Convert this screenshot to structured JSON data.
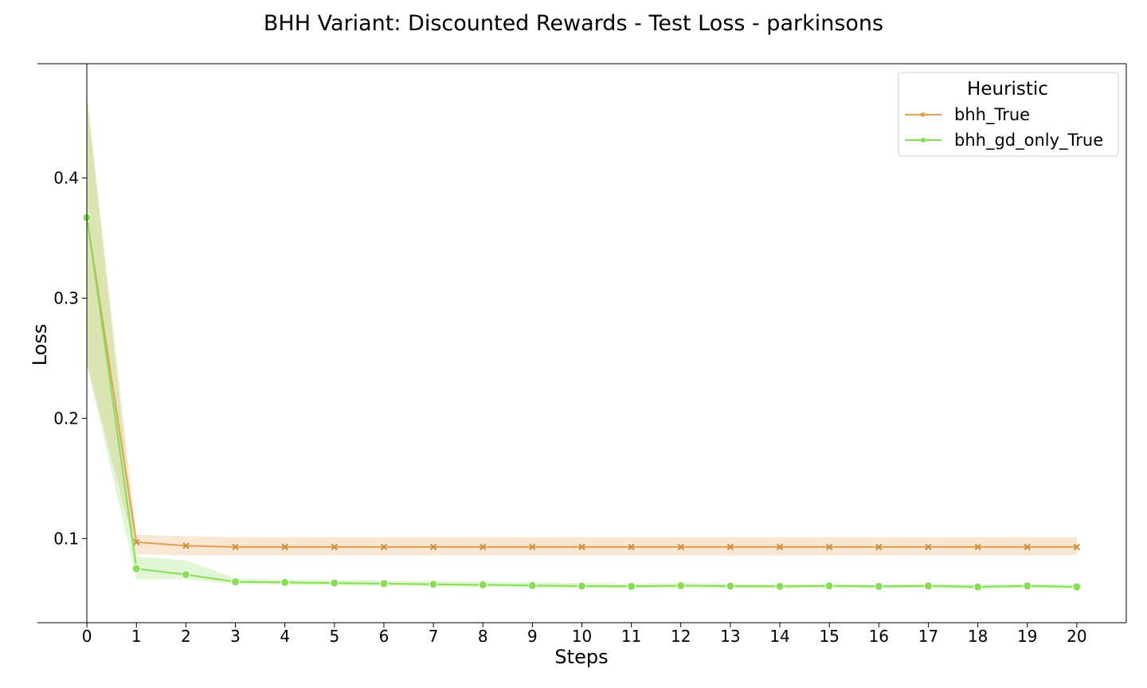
{
  "chart_data": {
    "type": "line",
    "title": "BHH Variant: Discounted Rewards - Test Loss - parkinsons",
    "xlabel": "Steps",
    "ylabel": "Loss",
    "xlim": [
      -1,
      21
    ],
    "ylim": [
      0.03,
      0.495
    ],
    "x": [
      0,
      1,
      2,
      3,
      4,
      5,
      6,
      7,
      8,
      9,
      10,
      11,
      12,
      13,
      14,
      15,
      16,
      17,
      18,
      19,
      20
    ],
    "x_ticks": [
      "0",
      "1",
      "2",
      "3",
      "4",
      "5",
      "6",
      "7",
      "8",
      "9",
      "10",
      "11",
      "12",
      "13",
      "14",
      "15",
      "16",
      "17",
      "18",
      "19",
      "20"
    ],
    "y_ticks": [
      0.1,
      0.2,
      0.3,
      0.4
    ],
    "y_tick_labels": [
      "0.1",
      "0.2",
      "0.3",
      "0.4"
    ],
    "grid": false,
    "legend": {
      "title": "Heuristic",
      "placement": "top-right"
    },
    "series": [
      {
        "name": "bhh_True",
        "color": "#E0A050",
        "marker": "x",
        "values": [
          0.367,
          0.097,
          0.094,
          0.093,
          0.093,
          0.093,
          0.093,
          0.093,
          0.093,
          0.093,
          0.093,
          0.093,
          0.093,
          0.093,
          0.093,
          0.093,
          0.093,
          0.093,
          0.093,
          0.093,
          0.093
        ],
        "ci_low": [
          0.245,
          0.087,
          0.086,
          0.086,
          0.086,
          0.086,
          0.086,
          0.086,
          0.086,
          0.086,
          0.086,
          0.086,
          0.086,
          0.086,
          0.086,
          0.086,
          0.086,
          0.086,
          0.086,
          0.086,
          0.086
        ],
        "ci_high": [
          0.468,
          0.103,
          0.102,
          0.101,
          0.101,
          0.101,
          0.101,
          0.101,
          0.101,
          0.101,
          0.101,
          0.101,
          0.101,
          0.101,
          0.101,
          0.101,
          0.101,
          0.101,
          0.101,
          0.101,
          0.101
        ]
      },
      {
        "name": "bhh_gd_only_True",
        "color": "#88DD55",
        "marker": "o",
        "values": [
          0.367,
          0.075,
          0.07,
          0.064,
          0.0635,
          0.063,
          0.0625,
          0.062,
          0.0615,
          0.061,
          0.0605,
          0.0603,
          0.0608,
          0.0605,
          0.0602,
          0.0606,
          0.0602,
          0.0606,
          0.0598,
          0.0606,
          0.0598
        ],
        "ci_low": [
          0.245,
          0.066,
          0.066,
          0.062,
          0.0615,
          0.061,
          0.0605,
          0.06,
          0.0595,
          0.059,
          0.0585,
          0.0583,
          0.0588,
          0.0585,
          0.0582,
          0.0586,
          0.0582,
          0.0586,
          0.0578,
          0.0586,
          0.0578
        ],
        "ci_high": [
          0.468,
          0.085,
          0.082,
          0.067,
          0.066,
          0.0655,
          0.065,
          0.0645,
          0.064,
          0.0635,
          0.063,
          0.0625,
          0.063,
          0.0625,
          0.062,
          0.0625,
          0.062,
          0.0625,
          0.0618,
          0.0625,
          0.0618
        ]
      }
    ]
  }
}
